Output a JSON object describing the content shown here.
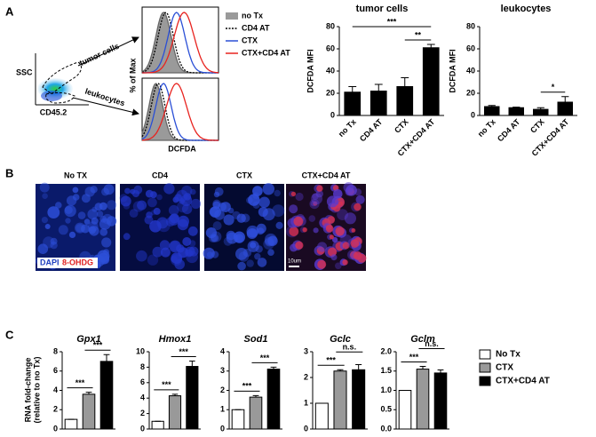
{
  "panel_labels": [
    "A",
    "B",
    "C"
  ],
  "panel_a": {
    "flow": {
      "y_label": "SSC",
      "x_label": "CD45.2",
      "gates": [
        "tumor cells",
        "leukocytes"
      ]
    },
    "histogram": {
      "y_label": "% of Max",
      "x_label": "DCFDA",
      "series": [
        {
          "name": "no Tx",
          "color": "#9a9a9a",
          "style": "filled"
        },
        {
          "name": "CD4 AT",
          "color": "#000000",
          "style": "dotted"
        },
        {
          "name": "CTX",
          "color": "#2a4fd6",
          "style": "solid"
        },
        {
          "name": "CTX+CD4 AT",
          "color": "#e8231f",
          "style": "solid"
        }
      ]
    }
  },
  "panel_b": {
    "images": [
      "No TX",
      "CD4",
      "CTX",
      "CTX+CD4 AT"
    ],
    "stains": [
      {
        "name": "DAPI",
        "color": "#1f3fbf"
      },
      {
        "name": "8-OHDG",
        "color": "#e02020"
      }
    ],
    "scale_bar": "10um"
  },
  "panel_c": {
    "y_label": [
      "RNA fold-change",
      "(relative to no Tx)"
    ],
    "legend": [
      {
        "name": "No Tx",
        "color": "#ffffff"
      },
      {
        "name": "CTX",
        "color": "#999999"
      },
      {
        "name": "CTX+CD4 AT",
        "color": "#000000"
      }
    ]
  },
  "chart_data": [
    {
      "type": "bar",
      "title": "tumor cells",
      "y_label": "DCFDA MFI",
      "categories": [
        "no Tx",
        "CD4 AT",
        "CTX",
        "CTX+CD4 AT"
      ],
      "values": [
        21,
        22,
        26,
        61
      ],
      "errors": [
        5,
        6,
        8,
        3
      ],
      "color": "#000000",
      "ylim": [
        0,
        80
      ],
      "yticks": [
        0,
        20,
        40,
        60,
        80
      ],
      "annotations": [
        {
          "label": "***",
          "bars": [
            0,
            3
          ]
        },
        {
          "label": "**",
          "bars": [
            2,
            3
          ]
        }
      ]
    },
    {
      "type": "bar",
      "title": "leukocytes",
      "y_label": "DCFDA MFI",
      "categories": [
        "no Tx",
        "CD4 AT",
        "CTX",
        "CTX+CD4 AT"
      ],
      "values": [
        8,
        7,
        5.5,
        12
      ],
      "errors": [
        1,
        0.5,
        1.5,
        5
      ],
      "color": "#000000",
      "ylim": [
        0,
        80
      ],
      "yticks": [
        0,
        20,
        40,
        60,
        80
      ],
      "annotations": [
        {
          "label": "*",
          "bars": [
            2,
            3
          ]
        }
      ]
    },
    {
      "type": "bar",
      "title": "Gpx1",
      "values": [
        1,
        3.6,
        7
      ],
      "errors": [
        0,
        0.2,
        0.7
      ],
      "ylim": [
        0,
        8
      ],
      "yticks": [
        0,
        2,
        4,
        6,
        8
      ],
      "annotations": [
        {
          "label": "***",
          "bars": [
            0,
            1
          ]
        },
        {
          "label": "***",
          "bars": [
            1,
            2
          ]
        }
      ]
    },
    {
      "type": "bar",
      "title": "Hmox1",
      "values": [
        1,
        4.3,
        8.1
      ],
      "errors": [
        0,
        0.2,
        0.7
      ],
      "ylim": [
        0,
        10
      ],
      "yticks": [
        0,
        2,
        4,
        6,
        8,
        10
      ],
      "annotations": [
        {
          "label": "***",
          "bars": [
            0,
            1
          ]
        },
        {
          "label": "***",
          "bars": [
            1,
            2
          ]
        }
      ]
    },
    {
      "type": "bar",
      "title": "Sod1",
      "values": [
        1,
        1.65,
        3.1
      ],
      "errors": [
        0,
        0.08,
        0.1
      ],
      "ylim": [
        0,
        4
      ],
      "yticks": [
        0,
        1,
        2,
        3,
        4
      ],
      "annotations": [
        {
          "label": "***",
          "bars": [
            0,
            1
          ]
        },
        {
          "label": "***",
          "bars": [
            1,
            2
          ]
        }
      ]
    },
    {
      "type": "bar",
      "title": "Gclc",
      "values": [
        1,
        2.25,
        2.3
      ],
      "errors": [
        0,
        0.05,
        0.2
      ],
      "ylim": [
        0,
        3
      ],
      "yticks": [
        0,
        1,
        2,
        3
      ],
      "annotations": [
        {
          "label": "***",
          "bars": [
            0,
            1
          ]
        },
        {
          "label": "n.s.",
          "bars": [
            1,
            2
          ]
        }
      ]
    },
    {
      "type": "bar",
      "title": "Gclm",
      "values": [
        1,
        1.55,
        1.45
      ],
      "errors": [
        0,
        0.07,
        0.08
      ],
      "ylim": [
        0,
        2
      ],
      "yticks": [
        {
          "value": 0,
          "label": "0.0"
        },
        {
          "value": 0.5,
          "label": "0.5"
        },
        {
          "value": 1,
          "label": "1.0"
        },
        {
          "value": 1.5,
          "label": "1.5"
        },
        {
          "value": 2,
          "label": "2.0"
        }
      ],
      "annotations": [
        {
          "label": "***",
          "bars": [
            0,
            1
          ]
        },
        {
          "label": "n.s.",
          "bars": [
            1,
            2
          ]
        }
      ]
    }
  ]
}
